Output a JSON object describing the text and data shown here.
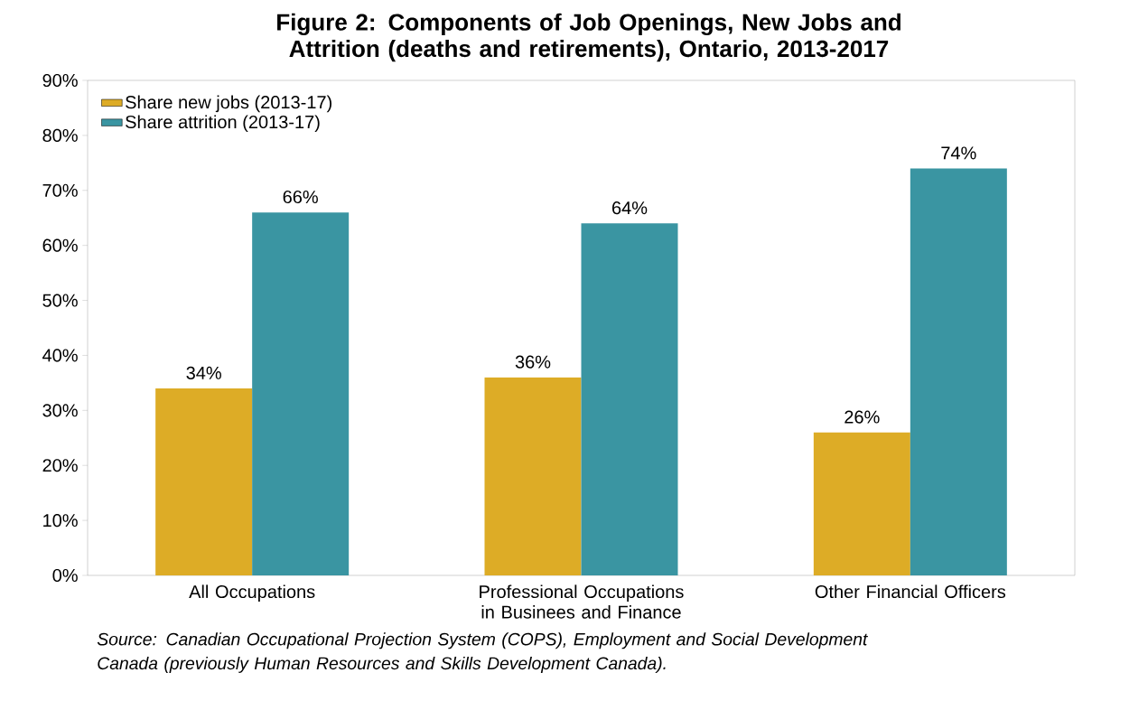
{
  "chart_data": {
    "type": "bar",
    "title": "Figure 2: Components of Job Openings, New Jobs and Attrition (deaths and retirements), Ontario, 2013-2017",
    "categories": [
      "All Occupations",
      "Professional Occupations in Businees and Finance",
      "Other Financial Officers"
    ],
    "series": [
      {
        "name": "Share new jobs (2013-17)",
        "color": "#ddac26",
        "values": [
          34,
          36,
          26
        ],
        "value_labels": [
          "34%",
          "36%",
          "26%"
        ]
      },
      {
        "name": "Share attrition (2013-17)",
        "color": "#3a95a2",
        "values": [
          66,
          64,
          74
        ],
        "value_labels": [
          "66%",
          "64%",
          "74%"
        ]
      }
    ],
    "ylim": [
      0,
      90
    ],
    "yticks": [
      {
        "value": 0,
        "label": "0%"
      },
      {
        "value": 10,
        "label": "10%"
      },
      {
        "value": 20,
        "label": "20%"
      },
      {
        "value": 30,
        "label": "30%"
      },
      {
        "value": 40,
        "label": "40%"
      },
      {
        "value": 50,
        "label": "50%"
      },
      {
        "value": 60,
        "label": "60%"
      },
      {
        "value": 70,
        "label": "70%"
      },
      {
        "value": 80,
        "label": "80%"
      },
      {
        "value": 90,
        "label": "90%"
      }
    ],
    "grid": false,
    "legend": "top left",
    "annotations": [
      "Source: Canadian Occupational Projection System (COPS), Employment and Social Development Canada (previously Human Resources and Skills Development Canada)."
    ]
  }
}
